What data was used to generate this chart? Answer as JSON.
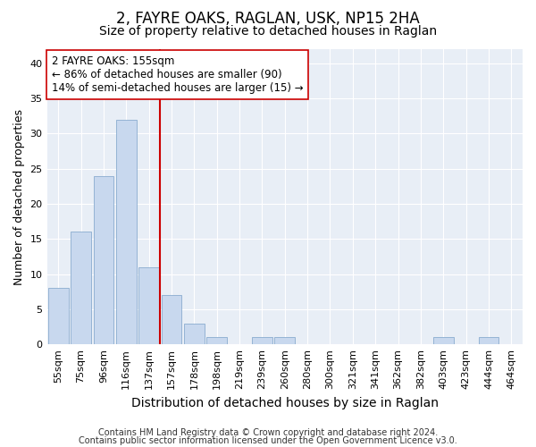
{
  "title1": "2, FAYRE OAKS, RAGLAN, USK, NP15 2HA",
  "title2": "Size of property relative to detached houses in Raglan",
  "xlabel": "Distribution of detached houses by size in Raglan",
  "ylabel": "Number of detached properties",
  "categories": [
    "55sqm",
    "75sqm",
    "96sqm",
    "116sqm",
    "137sqm",
    "157sqm",
    "178sqm",
    "198sqm",
    "219sqm",
    "239sqm",
    "260sqm",
    "280sqm",
    "300sqm",
    "321sqm",
    "341sqm",
    "362sqm",
    "382sqm",
    "403sqm",
    "423sqm",
    "444sqm",
    "464sqm"
  ],
  "values": [
    8,
    16,
    24,
    32,
    11,
    7,
    3,
    1,
    0,
    1,
    1,
    0,
    0,
    0,
    0,
    0,
    0,
    1,
    0,
    1,
    0
  ],
  "bar_color": "#c8d8ee",
  "bar_edge_color": "#8aaccf",
  "annotation_line1": "2 FAYRE OAKS: 155sqm",
  "annotation_line2": "← 86% of detached houses are smaller (90)",
  "annotation_line3": "14% of semi-detached houses are larger (15) →",
  "annotation_box_color": "white",
  "annotation_box_edge_color": "#cc0000",
  "vline_color": "#cc0000",
  "vline_x": 5,
  "ylim": [
    0,
    42
  ],
  "yticks": [
    0,
    5,
    10,
    15,
    20,
    25,
    30,
    35,
    40
  ],
  "footer1": "Contains HM Land Registry data © Crown copyright and database right 2024.",
  "footer2": "Contains public sector information licensed under the Open Government Licence v3.0.",
  "bg_color": "#ffffff",
  "plot_bg_color": "#e8eef6",
  "grid_color": "#ffffff",
  "title1_fontsize": 12,
  "title2_fontsize": 10,
  "xlabel_fontsize": 10,
  "ylabel_fontsize": 9,
  "tick_fontsize": 8,
  "annotation_fontsize": 8.5,
  "footer_fontsize": 7
}
